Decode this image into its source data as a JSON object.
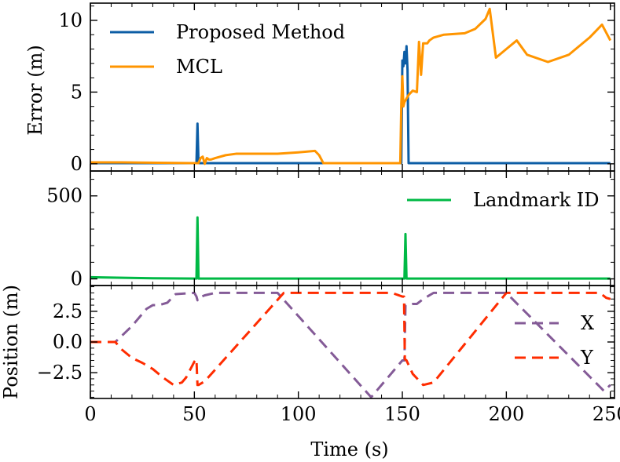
{
  "figure": {
    "xlabel": "Time (s)",
    "xlim": [
      0,
      252
    ],
    "xticks": [
      0,
      50,
      100,
      150,
      200,
      250
    ]
  },
  "colors": {
    "proposed": "#0C5DA5",
    "mcl": "#FF9500",
    "landmark": "#00B945",
    "x": "#845B97",
    "y": "#FF2C00"
  },
  "chart_data": [
    {
      "type": "line",
      "title": "",
      "ylabel": "Error (m)",
      "ylim": [
        -0.5,
        11.2
      ],
      "yticks": [
        0,
        5,
        10
      ],
      "legend_position": "top-left",
      "series": [
        {
          "name": "Proposed Method",
          "x": [
            0,
            50,
            51,
            51.5,
            52,
            60,
            100,
            148,
            149.5,
            150,
            150.5,
            151,
            151.5,
            152,
            152.5,
            153,
            153.5,
            200,
            250
          ],
          "y": [
            0.05,
            0.05,
            0.05,
            2.8,
            0.05,
            0.05,
            0.05,
            0.05,
            0.05,
            7.2,
            6.8,
            7.8,
            7.0,
            8.2,
            6.5,
            0.05,
            0.05,
            0.05,
            0.05
          ]
        },
        {
          "name": "MCL",
          "x": [
            0,
            15,
            50,
            52,
            53,
            54,
            55,
            56,
            57,
            58,
            60,
            65,
            70,
            80,
            90,
            95,
            100,
            108,
            110,
            112,
            113,
            120,
            130,
            140,
            149,
            149.5,
            150,
            150.5,
            151,
            153,
            155,
            157,
            158,
            159,
            160,
            162,
            163,
            165,
            170,
            180,
            185,
            190,
            192,
            195,
            200,
            205,
            210,
            220,
            230,
            240,
            246,
            250
          ],
          "y": [
            0.1,
            0.1,
            0.05,
            0.05,
            0.4,
            0.5,
            0.0,
            0.4,
            0.3,
            0.3,
            0.4,
            0.6,
            0.7,
            0.7,
            0.7,
            0.75,
            0.8,
            0.9,
            0.6,
            0.05,
            0.05,
            0.05,
            0.05,
            0.05,
            0.05,
            4.2,
            6.1,
            4.0,
            4.3,
            4.8,
            5.1,
            5.0,
            8.5,
            6.2,
            8.4,
            8.4,
            8.6,
            8.8,
            9.0,
            9.1,
            9.4,
            10.1,
            10.8,
            7.4,
            8.0,
            8.6,
            7.6,
            7.1,
            7.6,
            8.8,
            9.7,
            8.6
          ]
        }
      ]
    },
    {
      "type": "line",
      "title": "",
      "ylabel": "",
      "ylim": [
        -40,
        650
      ],
      "yticks": [
        0,
        500
      ],
      "legend_position": "top-right",
      "series": [
        {
          "name": "Landmark ID",
          "x": [
            0,
            10,
            30,
            50,
            51,
            51.5,
            52,
            100,
            150,
            151,
            151.5,
            152,
            200,
            250
          ],
          "y": [
            10,
            8,
            4,
            2,
            2,
            370,
            2,
            2,
            2,
            2,
            270,
            2,
            2,
            2
          ]
        }
      ]
    },
    {
      "type": "line",
      "title": "",
      "ylabel": "Position (m)",
      "ylim": [
        -4.6,
        4.6
      ],
      "yticks": [
        -2.5,
        0.0,
        2.5
      ],
      "ytick_labels": [
        "−2.5",
        "0.0",
        "2.5"
      ],
      "legend_position": "center-right",
      "series": [
        {
          "name": "X",
          "x": [
            0,
            12,
            20,
            27,
            30,
            33,
            37,
            41,
            50,
            51,
            51.5,
            52,
            55,
            60,
            65,
            90,
            135,
            150,
            151,
            151.5,
            152,
            155,
            157,
            160,
            165,
            200,
            247,
            250
          ],
          "y": [
            0.0,
            0.0,
            1.3,
            2.7,
            3.0,
            3.0,
            3.2,
            3.9,
            4.0,
            3.7,
            3.4,
            3.6,
            3.8,
            4.0,
            4.0,
            4.0,
            -4.5,
            -1.5,
            -1.5,
            3.0,
            3.0,
            3.1,
            3.1,
            3.5,
            4.0,
            4.0,
            -4.0,
            -3.5
          ]
        },
        {
          "name": "Y",
          "x": [
            0,
            12,
            15,
            20,
            25,
            30,
            35,
            40,
            44,
            46,
            50,
            51,
            51.5,
            52,
            55,
            93,
            100,
            145,
            150,
            150.8,
            151.2,
            152,
            155,
            160,
            165,
            200,
            205,
            245,
            248,
            250
          ],
          "y": [
            0.0,
            0.0,
            -0.6,
            -1.3,
            -1.7,
            -2.2,
            -2.9,
            -3.5,
            -3.3,
            -2.9,
            -1.6,
            -1.4,
            -3.5,
            -3.5,
            -3.2,
            4.0,
            4.0,
            4.0,
            3.7,
            3.7,
            -1.4,
            -1.5,
            -2.6,
            -3.5,
            -3.3,
            4.0,
            4.0,
            4.0,
            3.6,
            3.5
          ]
        }
      ]
    }
  ]
}
